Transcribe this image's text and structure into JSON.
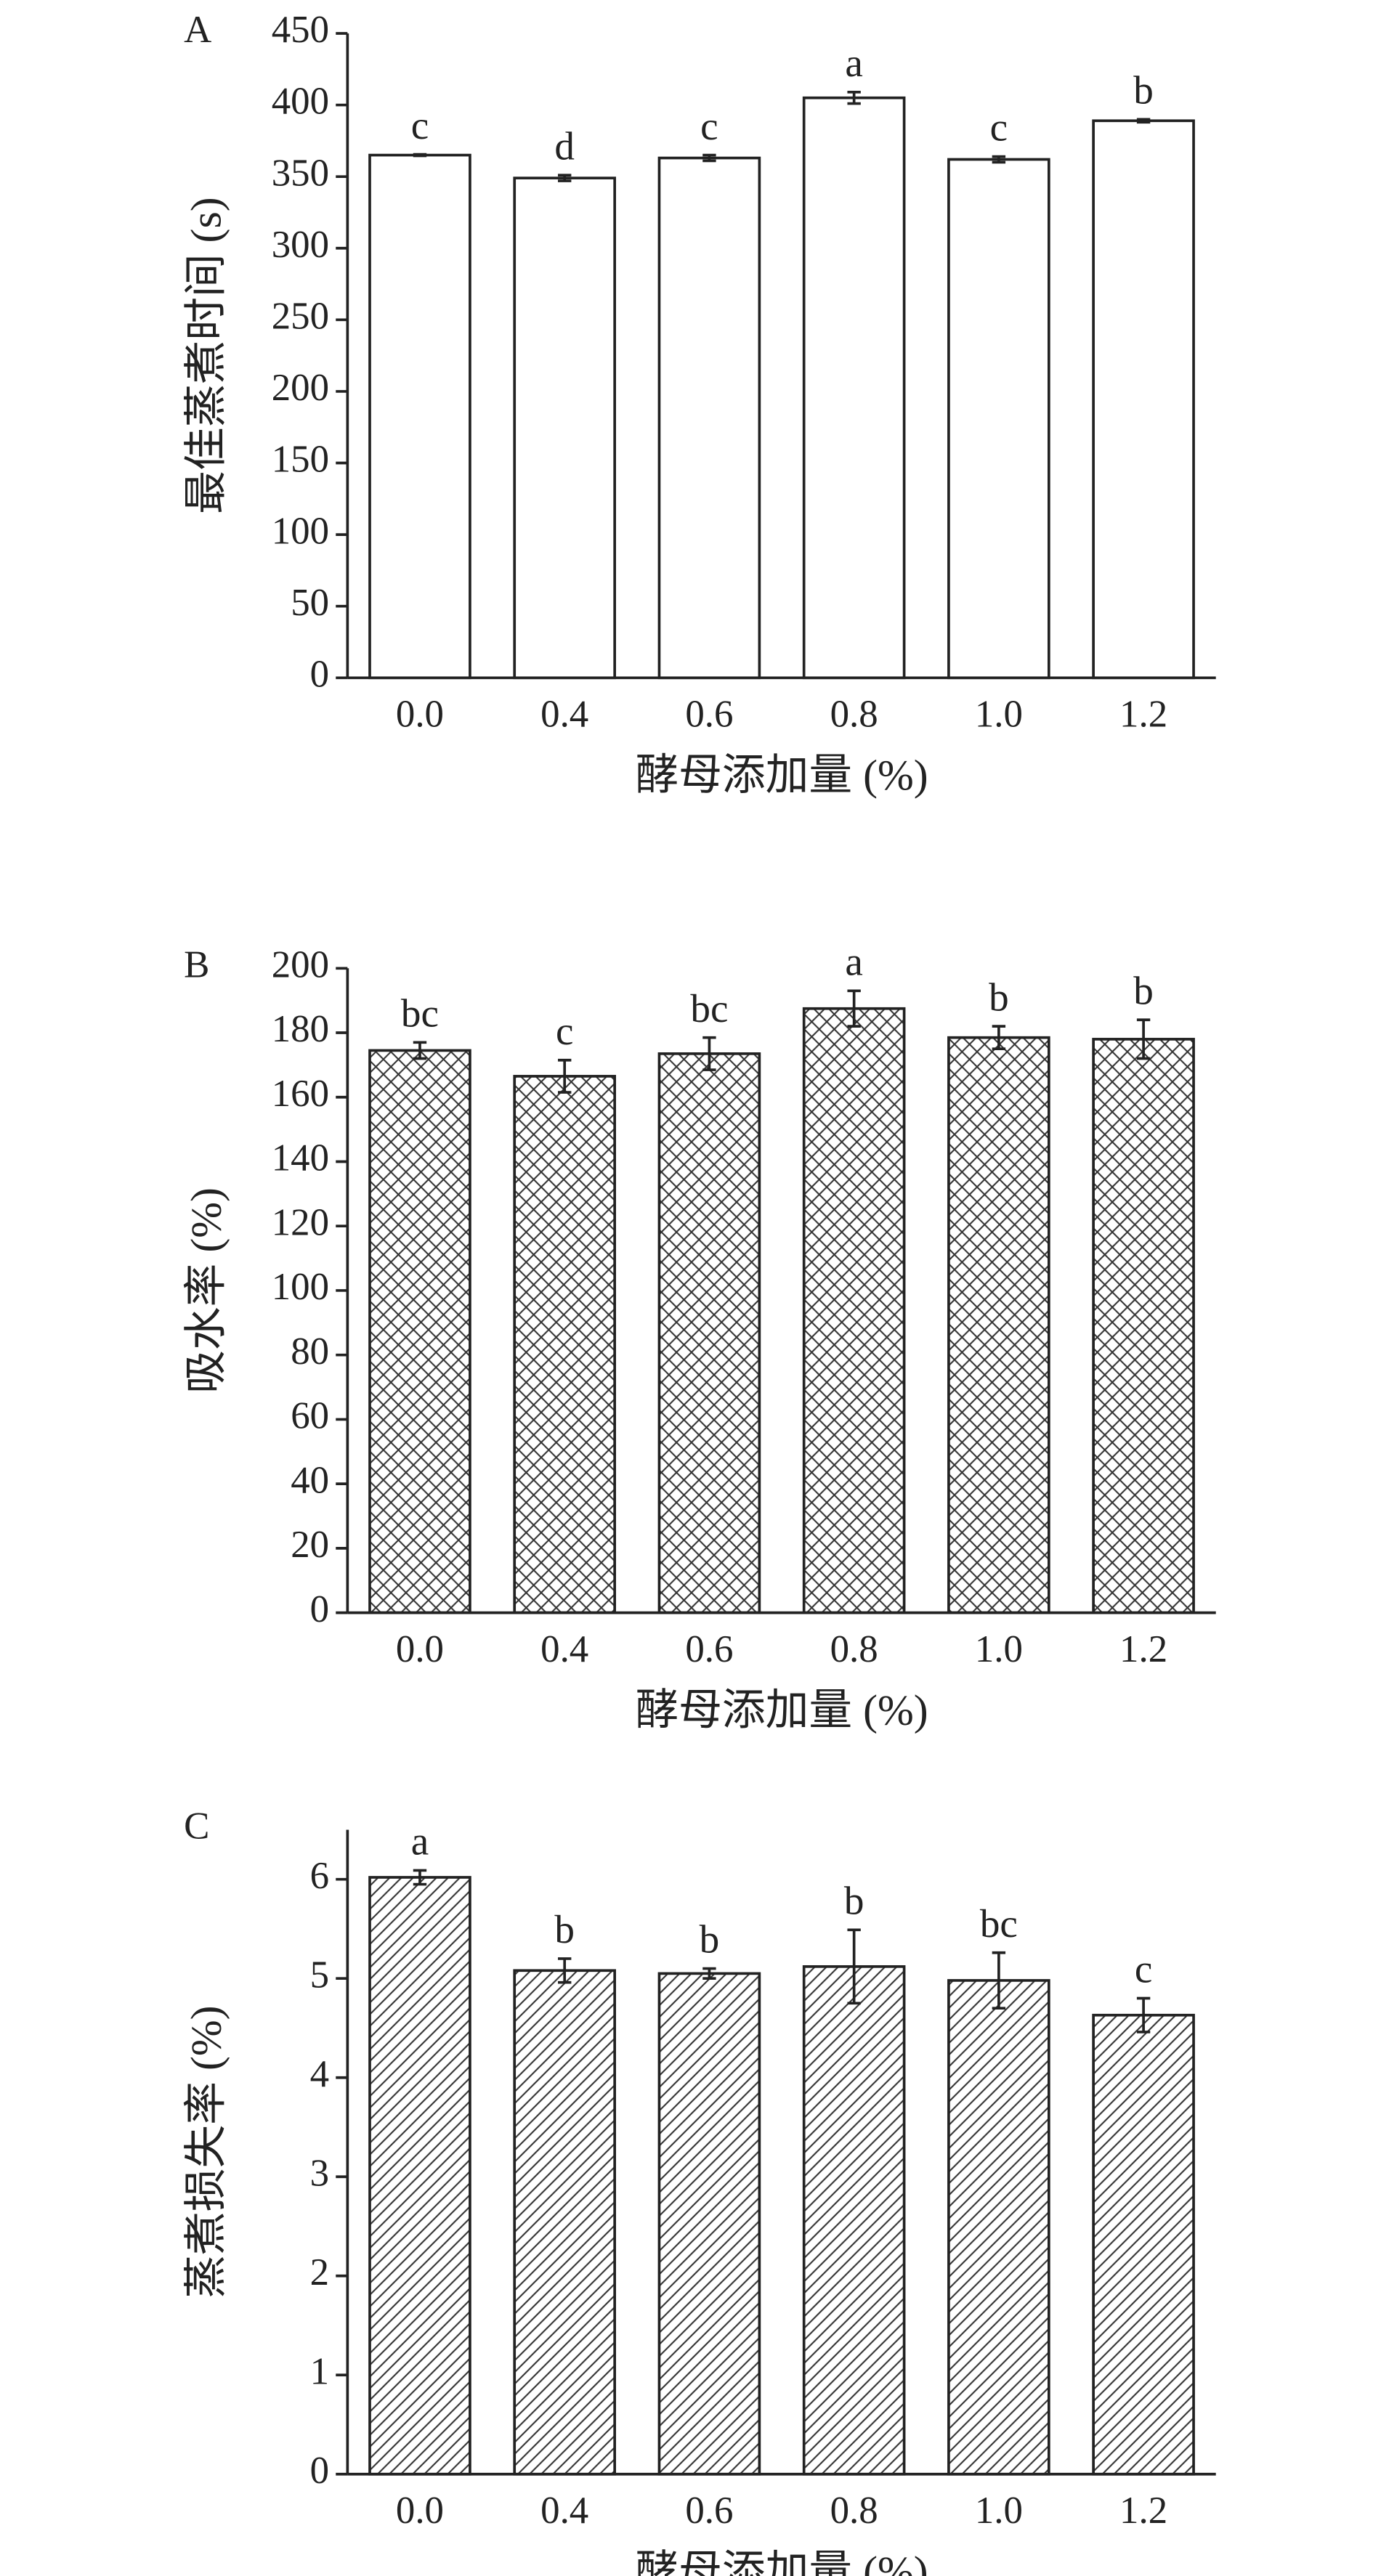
{
  "chart_data": [
    {
      "type": "bar",
      "panel_label": "A",
      "y_label": "最佳蒸煮时间 (s)",
      "x_label": "酵母添加量 (%)",
      "categories": [
        "0.0",
        "0.4",
        "0.6",
        "0.8",
        "1.0",
        "1.2"
      ],
      "values": [
        365,
        349,
        363,
        405,
        362,
        389
      ],
      "errors": [
        0.5,
        2,
        2,
        4,
        2,
        1
      ],
      "annotations": [
        "c",
        "d",
        "c",
        "a",
        "c",
        "b"
      ],
      "ylim": [
        0,
        450
      ],
      "yticks": [
        0,
        50,
        100,
        150,
        200,
        250,
        300,
        350,
        400,
        450
      ],
      "color": "#ffffff",
      "hatch": "none"
    },
    {
      "type": "bar",
      "panel_label": "B",
      "y_label": "吸水率 (%)",
      "x_label": "酵母添加量 (%)",
      "categories": [
        "0.0",
        "0.4",
        "0.6",
        "0.8",
        "1.0",
        "1.2"
      ],
      "values": [
        174.5,
        166.5,
        173.5,
        187.5,
        178.5,
        178
      ],
      "errors": [
        2.5,
        5,
        5,
        5.5,
        3.5,
        6
      ],
      "annotations": [
        "bc",
        "c",
        "bc",
        "a",
        "b",
        "b"
      ],
      "ylim": [
        0,
        200
      ],
      "yticks": [
        0,
        20,
        40,
        60,
        80,
        100,
        120,
        140,
        160,
        180,
        200
      ],
      "color": "#ffffff",
      "hatch": "crosshatch"
    },
    {
      "type": "bar",
      "panel_label": "C",
      "y_label": "蒸煮损失率 (%)",
      "x_label": "酵母添加量 (%)",
      "categories": [
        "0.0",
        "0.4",
        "0.6",
        "0.8",
        "1.0",
        "1.2"
      ],
      "values": [
        6.02,
        5.08,
        5.05,
        5.12,
        4.98,
        4.63
      ],
      "errors": [
        0.07,
        0.12,
        0.05,
        0.37,
        0.28,
        0.17
      ],
      "annotations": [
        "a",
        "b",
        "b",
        "b",
        "bc",
        "c"
      ],
      "ylim": [
        0,
        6.5
      ],
      "yticks": [
        0,
        1,
        2,
        3,
        4,
        5,
        6
      ],
      "color": "#ffffff",
      "hatch": "diagonal"
    }
  ]
}
